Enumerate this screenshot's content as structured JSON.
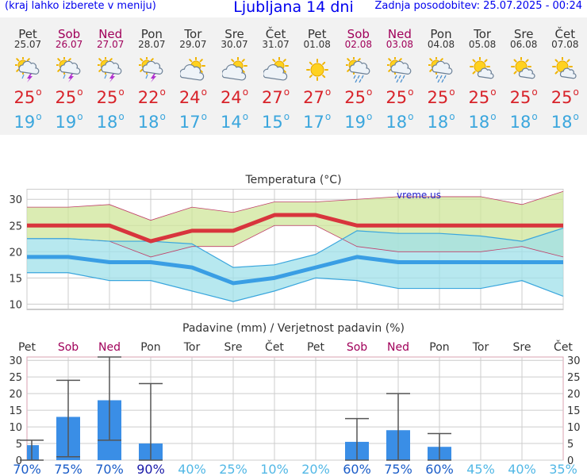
{
  "header": {
    "menu_hint": "(kraj lahko izberete v meniju)",
    "title": "Ljubljana 14 dni",
    "updated": "Zadnja posodobitev: 25.07.2025 - 00:24"
  },
  "days": [
    {
      "name": "Pet",
      "date": "25.07",
      "weekend": false,
      "icon": "sun-cloud-storm-icon",
      "tmax": "25",
      "tmin": "19"
    },
    {
      "name": "Sob",
      "date": "26.07",
      "weekend": true,
      "icon": "sun-cloud-storm-icon",
      "tmax": "25",
      "tmin": "19"
    },
    {
      "name": "Ned",
      "date": "27.07",
      "weekend": true,
      "icon": "sun-cloud-storm-icon",
      "tmax": "25",
      "tmin": "18"
    },
    {
      "name": "Pon",
      "date": "28.07",
      "weekend": false,
      "icon": "sun-cloud-storm-icon",
      "tmax": "22",
      "tmin": "18"
    },
    {
      "name": "Tor",
      "date": "29.07",
      "weekend": false,
      "icon": "partly-cloudy-icon",
      "tmax": "24",
      "tmin": "17"
    },
    {
      "name": "Sre",
      "date": "30.07",
      "weekend": false,
      "icon": "partly-cloudy-icon",
      "tmax": "24",
      "tmin": "14"
    },
    {
      "name": "Čet",
      "date": "31.07",
      "weekend": false,
      "icon": "partly-cloudy-icon",
      "tmax": "27",
      "tmin": "15"
    },
    {
      "name": "Pet",
      "date": "01.08",
      "weekend": false,
      "icon": "sun-icon",
      "tmax": "27",
      "tmin": "17"
    },
    {
      "name": "Sob",
      "date": "02.08",
      "weekend": true,
      "icon": "sun-cloud-rain-icon",
      "tmax": "25",
      "tmin": "19"
    },
    {
      "name": "Ned",
      "date": "03.08",
      "weekend": true,
      "icon": "sun-cloud-rain-icon",
      "tmax": "25",
      "tmin": "18"
    },
    {
      "name": "Pon",
      "date": "04.08",
      "weekend": false,
      "icon": "sun-cloud-rain-icon",
      "tmax": "25",
      "tmin": "18"
    },
    {
      "name": "Tor",
      "date": "05.08",
      "weekend": false,
      "icon": "sun-small-cloud-icon",
      "tmax": "25",
      "tmin": "18"
    },
    {
      "name": "Sre",
      "date": "06.08",
      "weekend": false,
      "icon": "sun-small-cloud-icon",
      "tmax": "25",
      "tmin": "18"
    },
    {
      "name": "Čet",
      "date": "07.08",
      "weekend": false,
      "icon": "sun-small-cloud-icon",
      "tmax": "25",
      "tmin": "18"
    }
  ],
  "chart_data": [
    {
      "type": "line",
      "title": "Temperatura (°C)",
      "watermark": "vreme.us",
      "ylim": [
        9,
        32
      ],
      "yticks": [
        10,
        15,
        20,
        25,
        30
      ],
      "grid": true,
      "x": [
        0,
        1,
        2,
        3,
        4,
        5,
        6,
        7,
        8,
        9,
        10,
        11,
        12,
        13
      ],
      "series": [
        {
          "role": "max",
          "values": [
            25,
            25,
            25,
            22,
            24,
            24,
            27,
            27,
            25,
            25,
            25,
            25,
            25,
            25
          ],
          "color": "#d8353d"
        },
        {
          "role": "max_band_upper",
          "values": [
            28.5,
            28.5,
            29,
            26,
            28.5,
            27.5,
            29.5,
            29.5,
            30,
            30.5,
            30.5,
            30.5,
            29,
            31.5
          ],
          "color": "#cfe69a"
        },
        {
          "role": "max_band_lower",
          "values": [
            22.5,
            22.5,
            22,
            19,
            21,
            21,
            25,
            25,
            21,
            20,
            20,
            20,
            21,
            19
          ],
          "color": "#cfe69a"
        },
        {
          "role": "min",
          "values": [
            19,
            19,
            18,
            18,
            17,
            14,
            15,
            17,
            19,
            18,
            18,
            18,
            18,
            18
          ],
          "color": "#3a9ee4"
        },
        {
          "role": "min_band_upper",
          "values": [
            22.5,
            22.5,
            22,
            22,
            21.5,
            17,
            17.5,
            19.5,
            24,
            23.5,
            23.5,
            23,
            22,
            24.5
          ],
          "color": "#9fe0ea"
        },
        {
          "role": "min_band_lower",
          "values": [
            16,
            16,
            14.5,
            14.5,
            12.5,
            10.5,
            12.5,
            15,
            14.5,
            13,
            13,
            13,
            14.5,
            11.5
          ],
          "color": "#9fe0ea"
        }
      ]
    },
    {
      "type": "bar",
      "title": "Padavine (mm) / Verjetnost padavin (%)",
      "ylim": [
        0,
        31
      ],
      "yticks": [
        0,
        5,
        10,
        15,
        20,
        25,
        30
      ],
      "categories": [
        "Pet",
        "Sob",
        "Ned",
        "Pon",
        "Tor",
        "Sre",
        "Čet",
        "Pet",
        "Sob",
        "Ned",
        "Pon",
        "Tor",
        "Sre",
        "Čet"
      ],
      "weekend": [
        false,
        true,
        true,
        false,
        false,
        false,
        false,
        false,
        true,
        true,
        false,
        false,
        false,
        false
      ],
      "values": [
        4.5,
        13,
        18,
        5,
        0,
        0,
        0,
        0,
        5.5,
        9,
        4,
        0,
        0,
        0
      ],
      "error_high": [
        6,
        24,
        31,
        23,
        0,
        0,
        0,
        0,
        12.5,
        20,
        8,
        0,
        0,
        0
      ],
      "error_low": [
        0,
        1,
        6,
        0,
        0,
        0,
        0,
        0,
        0,
        0,
        0,
        0,
        0,
        0
      ],
      "probability": [
        "70%",
        "75%",
        "70%",
        "90%",
        "40%",
        "25%",
        "10%",
        "20%",
        "60%",
        "75%",
        "60%",
        "45%",
        "40%",
        "35%"
      ],
      "bar_color": "#3a8ee6"
    }
  ]
}
